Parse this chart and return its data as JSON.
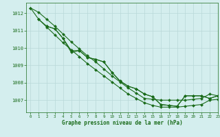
{
  "series": [
    {
      "name": "line1_straight",
      "x": [
        0,
        1,
        2,
        3,
        4,
        5,
        6,
        7,
        8,
        9,
        10,
        11,
        12,
        13,
        14,
        15,
        16,
        17,
        18,
        19,
        20,
        21,
        22,
        23
      ],
      "y": [
        1012.3,
        1012.05,
        1011.65,
        1011.25,
        1010.8,
        1010.35,
        1009.95,
        1009.55,
        1009.2,
        1008.8,
        1008.4,
        1008.05,
        1007.7,
        1007.4,
        1007.1,
        1007.05,
        1007.0,
        1007.0,
        1007.0,
        1007.0,
        1007.05,
        1007.1,
        1007.35,
        1007.25
      ]
    },
    {
      "name": "line2_straight",
      "x": [
        0,
        1,
        2,
        3,
        4,
        5,
        6,
        7,
        8,
        9,
        10,
        11,
        12,
        13,
        14,
        15,
        16,
        17,
        18,
        19,
        20,
        21,
        22,
        23
      ],
      "y": [
        1012.3,
        1011.65,
        1011.2,
        1010.75,
        1010.3,
        1009.9,
        1009.5,
        1009.1,
        1008.75,
        1008.4,
        1008.05,
        1007.7,
        1007.35,
        1007.1,
        1006.85,
        1006.7,
        1006.6,
        1006.6,
        1006.6,
        1006.65,
        1006.7,
        1006.75,
        1007.0,
        1007.05
      ]
    },
    {
      "name": "line3_curved",
      "x": [
        1,
        2,
        3,
        4,
        5,
        6,
        7,
        8,
        9,
        10,
        11,
        12,
        13,
        14,
        15,
        16,
        17,
        18,
        19,
        20,
        21,
        22,
        23
      ],
      "y": [
        1011.65,
        1011.25,
        1011.1,
        1010.55,
        1009.85,
        1009.85,
        1009.45,
        1009.35,
        1009.2,
        1008.6,
        1008.1,
        1007.8,
        1007.65,
        1007.35,
        1007.2,
        1006.75,
        1006.7,
        1006.65,
        1007.25,
        1007.25,
        1007.25,
        1007.1,
        1007.25
      ]
    },
    {
      "name": "line4_curved",
      "x": [
        2,
        3,
        4,
        5,
        6,
        7,
        8,
        9,
        10,
        11,
        12,
        13,
        14,
        15,
        16,
        17,
        18,
        19,
        20,
        21,
        22,
        23
      ],
      "y": [
        1011.25,
        1011.1,
        1010.55,
        1009.75,
        1009.85,
        1009.45,
        1009.35,
        1009.2,
        1008.6,
        1008.1,
        1007.8,
        1007.65,
        1007.35,
        1007.2,
        1006.75,
        1006.7,
        1006.65,
        1007.25,
        1007.25,
        1007.25,
        1007.1,
        1007.25
      ]
    }
  ],
  "line_color": "#1a6b1a",
  "marker": "D",
  "marker_size": 2.0,
  "linewidth": 0.8,
  "xlim": [
    -0.5,
    23
  ],
  "ylim": [
    1006.3,
    1012.6
  ],
  "yticks": [
    1007,
    1008,
    1009,
    1010,
    1011,
    1012
  ],
  "xticks": [
    0,
    1,
    2,
    3,
    4,
    5,
    6,
    7,
    8,
    9,
    10,
    11,
    12,
    13,
    14,
    15,
    16,
    17,
    18,
    19,
    20,
    21,
    22,
    23
  ],
  "xlabel": "Graphe pression niveau de la mer (hPa)",
  "bg_color": "#d4eeee",
  "grid_color": "#b8d8d8",
  "text_color": "#1a6b1a",
  "tick_color": "#1a6b1a"
}
